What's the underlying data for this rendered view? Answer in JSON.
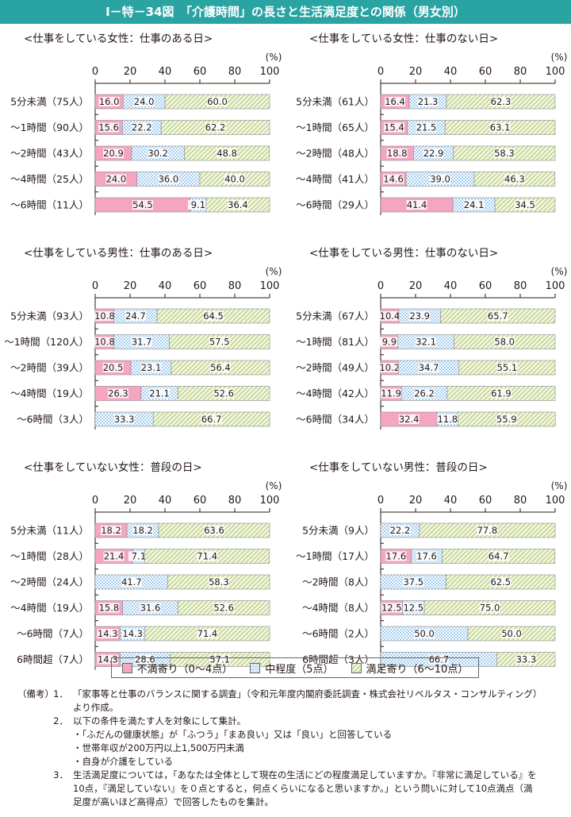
{
  "title": "Ⅰ－特－34図　「介護時間」の長さと生活満足度との関係（男女別）",
  "axis": {
    "ticks": [
      "0",
      "20",
      "40",
      "60",
      "80",
      "100"
    ],
    "unit": "(%)",
    "max": 100
  },
  "colors": {
    "dissatisfied": "#f4a5c0",
    "neutral": "#a4cef0",
    "satisfied": "#c9d99a",
    "title_bg": "#2aa3a3"
  },
  "legend": {
    "dissatisfied": "不満寄り（0～4点）",
    "neutral": "中程度（5点）",
    "satisfied": "満足寄り（6～10点）"
  },
  "chart_data": [
    {
      "type": "bar",
      "orientation": "horizontal-stacked",
      "title": "<仕事をしている女性：仕事のある日>",
      "categories": [
        "5分未満（75人）",
        "～1時間（90人）",
        "～2時間（43人）",
        "～4時間（25人）",
        "～6時間（11人）"
      ],
      "series": [
        {
          "name": "不満寄り（0～4点）",
          "values": [
            16.0,
            15.6,
            20.9,
            24.0,
            54.5
          ]
        },
        {
          "name": "中程度（5点）",
          "values": [
            24.0,
            22.2,
            30.2,
            36.0,
            9.1
          ]
        },
        {
          "name": "満足寄り（6～10点）",
          "values": [
            60.0,
            62.2,
            48.8,
            40.0,
            36.4
          ]
        }
      ],
      "xlim": [
        0,
        100
      ]
    },
    {
      "type": "bar",
      "orientation": "horizontal-stacked",
      "title": "<仕事をしている女性：仕事のない日>",
      "categories": [
        "5分未満（61人）",
        "～1時間（65人）",
        "～2時間（48人）",
        "～4時間（41人）",
        "～6時間（29人）"
      ],
      "series": [
        {
          "name": "不満寄り（0～4点）",
          "values": [
            16.4,
            15.4,
            18.8,
            14.6,
            41.4
          ]
        },
        {
          "name": "中程度（5点）",
          "values": [
            21.3,
            21.5,
            22.9,
            39.0,
            24.1
          ]
        },
        {
          "name": "満足寄り（6～10点）",
          "values": [
            62.3,
            63.1,
            58.3,
            46.3,
            34.5
          ]
        }
      ],
      "xlim": [
        0,
        100
      ]
    },
    {
      "type": "bar",
      "orientation": "horizontal-stacked",
      "title": "<仕事をしている男性：仕事のある日>",
      "categories": [
        "5分未満（93人）",
        "～1時間（120人）",
        "～2時間（39人）",
        "～4時間（19人）",
        "～6時間（3人）"
      ],
      "series": [
        {
          "name": "不満寄り（0～4点）",
          "values": [
            10.8,
            10.8,
            20.5,
            26.3,
            0
          ]
        },
        {
          "name": "中程度（5点）",
          "values": [
            24.7,
            31.7,
            23.1,
            21.1,
            33.3
          ]
        },
        {
          "name": "満足寄り（6～10点）",
          "values": [
            64.5,
            57.5,
            56.4,
            52.6,
            66.7
          ]
        }
      ],
      "xlim": [
        0,
        100
      ]
    },
    {
      "type": "bar",
      "orientation": "horizontal-stacked",
      "title": "<仕事をしている男性：仕事のない日>",
      "categories": [
        "5分未満（67人）",
        "～1時間（81人）",
        "～2時間（49人）",
        "～4時間（42人）",
        "～6時間（34人）"
      ],
      "series": [
        {
          "name": "不満寄り（0～4点）",
          "values": [
            10.4,
            9.9,
            10.2,
            11.9,
            32.4
          ]
        },
        {
          "name": "中程度（5点）",
          "values": [
            23.9,
            32.1,
            34.7,
            26.2,
            11.8
          ]
        },
        {
          "name": "満足寄り（6～10点）",
          "values": [
            65.7,
            58.0,
            55.1,
            61.9,
            55.9
          ]
        }
      ],
      "xlim": [
        0,
        100
      ]
    },
    {
      "type": "bar",
      "orientation": "horizontal-stacked",
      "title": "<仕事をしていない女性：普段の日>",
      "categories": [
        "5分未満（11人）",
        "～1時間（28人）",
        "～2時間（24人）",
        "～4時間（19人）",
        "～6時間（7人）",
        "6時間超（7人）"
      ],
      "series": [
        {
          "name": "不満寄り（0～4点）",
          "values": [
            18.2,
            21.4,
            0,
            15.8,
            14.3,
            14.3
          ]
        },
        {
          "name": "中程度（5点）",
          "values": [
            18.2,
            7.1,
            41.7,
            31.6,
            14.3,
            28.6
          ]
        },
        {
          "name": "満足寄り（6～10点）",
          "values": [
            63.6,
            71.4,
            58.3,
            52.6,
            71.4,
            57.1
          ]
        }
      ],
      "xlim": [
        0,
        100
      ]
    },
    {
      "type": "bar",
      "orientation": "horizontal-stacked",
      "title": "<仕事をしていない男性：普段の日>",
      "categories": [
        "5分未満（9人）",
        "～1時間（17人）",
        "～2時間（8人）",
        "～4時間（8人）",
        "～6時間（2人）",
        "6時間超（3人）"
      ],
      "series": [
        {
          "name": "不満寄り（0～4点）",
          "values": [
            0,
            17.6,
            0,
            12.5,
            0,
            0
          ]
        },
        {
          "name": "中程度（5点）",
          "values": [
            22.2,
            17.6,
            37.5,
            12.5,
            50.0,
            66.7
          ]
        },
        {
          "name": "満足寄り（6～10点）",
          "values": [
            77.8,
            64.7,
            62.5,
            75.0,
            50.0,
            33.3
          ]
        }
      ],
      "xlim": [
        0,
        100
      ]
    }
  ],
  "notes": {
    "label": "（備考）",
    "items": [
      {
        "num": "1．",
        "lines": [
          "「家事等と仕事のバランスに関する調査」（令和元年度内閣府委託調査・株式会社リベルタス・コンサルティング）",
          "より作成。"
        ]
      },
      {
        "num": "2．",
        "lines": [
          "以下の条件を満たす人を対象にして集計。",
          "・「ふだんの健康状態」が「ふつう」「まあ良い」又は「良い」と回答している",
          "・世帯年収が200万円以上1,500万円未満",
          "・自身が介護をしている"
        ]
      },
      {
        "num": "3．",
        "lines": [
          "生活満足度については，「あなたは全体として現在の生活にどの程度満足していますか。『非常に満足している』を",
          "10点，『満足していない』を０点とすると，何点くらいになると思いますか。」という問いに対して10点満点（満",
          "足度が高いほど高得点）で回答したものを集計。"
        ]
      }
    ]
  }
}
